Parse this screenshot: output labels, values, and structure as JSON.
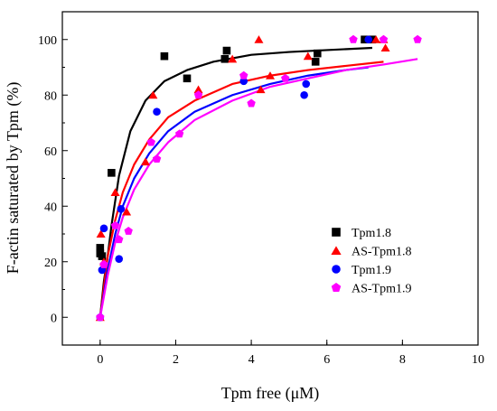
{
  "chart_data": {
    "type": "scatter",
    "xlabel": "Tpm free (μM)",
    "ylabel": "F-actin saturated by Tpm (%)",
    "xlim": [
      -1,
      10
    ],
    "ylim": [
      -10,
      110
    ],
    "xticks": [
      0,
      2,
      4,
      6,
      8,
      10
    ],
    "yticks": [
      0,
      20,
      40,
      60,
      80,
      100
    ],
    "legend_position": "middle-right",
    "series": [
      {
        "name": "Tpm1.8",
        "marker": "square",
        "color": "#000000",
        "points": [
          [
            0,
            25
          ],
          [
            0,
            23
          ],
          [
            0.05,
            22
          ],
          [
            0.3,
            52
          ],
          [
            1.7,
            94
          ],
          [
            2.3,
            86
          ],
          [
            3.3,
            93
          ],
          [
            3.35,
            96
          ],
          [
            5.7,
            92
          ],
          [
            5.75,
            95
          ],
          [
            7.0,
            100
          ],
          [
            7.2,
            100
          ]
        ],
        "fit_curve": [
          [
            0,
            0
          ],
          [
            0.1,
            13
          ],
          [
            0.2,
            22
          ],
          [
            0.3,
            33
          ],
          [
            0.5,
            51
          ],
          [
            0.8,
            67
          ],
          [
            1.2,
            78
          ],
          [
            1.7,
            85
          ],
          [
            2.3,
            89
          ],
          [
            3,
            92
          ],
          [
            4,
            94.5
          ],
          [
            5,
            95.5
          ],
          [
            6,
            96.2
          ],
          [
            7.2,
            97
          ]
        ]
      },
      {
        "name": "AS-Tpm1.8",
        "marker": "triangle",
        "color": "#ff0000",
        "points": [
          [
            0,
            0
          ],
          [
            0.02,
            30
          ],
          [
            0.1,
            20
          ],
          [
            0.4,
            45
          ],
          [
            0.7,
            38
          ],
          [
            1.2,
            56
          ],
          [
            1.4,
            80
          ],
          [
            2.6,
            82
          ],
          [
            3.5,
            93
          ],
          [
            4.2,
            100
          ],
          [
            4.25,
            82
          ],
          [
            4.5,
            87
          ],
          [
            5.5,
            94
          ],
          [
            7.3,
            100
          ],
          [
            7.5,
            100
          ],
          [
            7.55,
            97
          ]
        ],
        "fit_curve": [
          [
            0,
            0
          ],
          [
            0.2,
            22
          ],
          [
            0.4,
            35
          ],
          [
            0.6,
            45
          ],
          [
            0.9,
            55
          ],
          [
            1.3,
            64
          ],
          [
            1.8,
            72
          ],
          [
            2.5,
            78
          ],
          [
            3.5,
            84
          ],
          [
            4.5,
            87
          ],
          [
            5.5,
            89
          ],
          [
            6.5,
            90.5
          ],
          [
            7.5,
            92
          ]
        ]
      },
      {
        "name": "Tpm1.9",
        "marker": "circle",
        "color": "#0000ff",
        "points": [
          [
            0,
            0
          ],
          [
            0.05,
            17
          ],
          [
            0.1,
            32
          ],
          [
            0.5,
            21
          ],
          [
            0.55,
            39
          ],
          [
            1.5,
            74
          ],
          [
            3.8,
            85
          ],
          [
            5.4,
            80
          ],
          [
            5.45,
            84
          ],
          [
            7.1,
            100
          ]
        ],
        "fit_curve": [
          [
            0,
            0
          ],
          [
            0.2,
            17
          ],
          [
            0.4,
            30
          ],
          [
            0.6,
            40
          ],
          [
            0.9,
            50
          ],
          [
            1.3,
            59
          ],
          [
            1.8,
            67
          ],
          [
            2.5,
            74
          ],
          [
            3.5,
            80
          ],
          [
            4.5,
            84
          ],
          [
            5.5,
            87
          ],
          [
            6.5,
            89
          ],
          [
            7.1,
            90
          ]
        ]
      },
      {
        "name": "AS-Tpm1.9",
        "marker": "pentagon",
        "color": "#ff00ff",
        "points": [
          [
            0,
            0
          ],
          [
            0.1,
            19
          ],
          [
            0.4,
            33
          ],
          [
            0.5,
            28
          ],
          [
            0.75,
            31
          ],
          [
            1.35,
            63
          ],
          [
            1.5,
            57
          ],
          [
            2.1,
            66
          ],
          [
            2.6,
            80
          ],
          [
            3.8,
            87
          ],
          [
            4.0,
            77
          ],
          [
            4.9,
            86
          ],
          [
            6.7,
            100
          ],
          [
            7.5,
            100
          ],
          [
            8.4,
            100
          ]
        ],
        "fit_curve": [
          [
            0,
            0
          ],
          [
            0.2,
            15
          ],
          [
            0.4,
            27
          ],
          [
            0.6,
            36
          ],
          [
            0.9,
            46
          ],
          [
            1.3,
            55
          ],
          [
            1.8,
            63
          ],
          [
            2.5,
            71
          ],
          [
            3.5,
            78
          ],
          [
            4.5,
            83
          ],
          [
            5.5,
            86
          ],
          [
            6.5,
            89
          ],
          [
            7.5,
            91
          ],
          [
            8.4,
            93
          ]
        ]
      }
    ]
  }
}
